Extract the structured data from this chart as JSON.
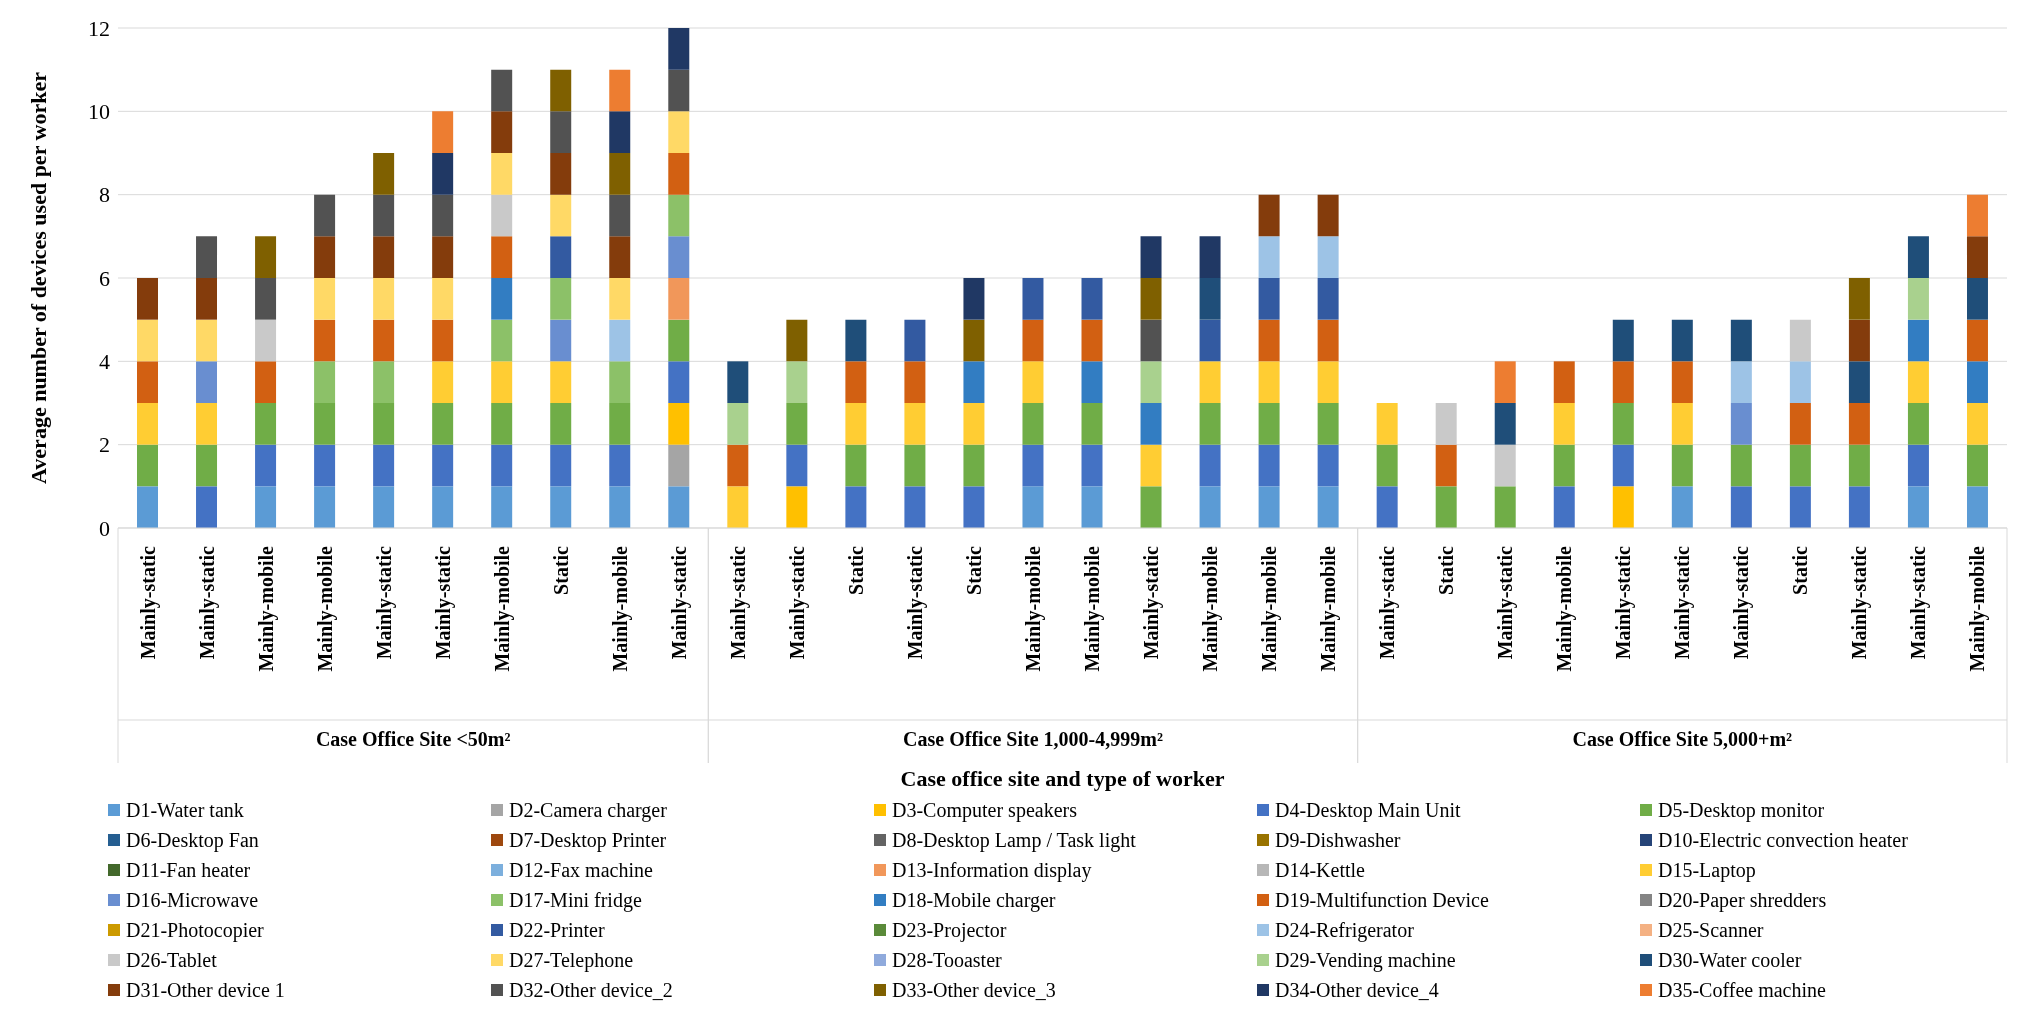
{
  "chart_data": {
    "type": "bar",
    "stacked": true,
    "xlabel": "Case office site and type of worker",
    "ylabel": "Average number of devices used per worker",
    "categories": [
      "Mainly-static",
      "Mainly-static",
      "Mainly-mobile",
      "Mainly-mobile",
      "Mainly-static",
      "Mainly-static",
      "Mainly-mobile",
      "Static",
      "Mainly-mobile",
      "Mainly-static",
      "Mainly-static",
      "Mainly-static",
      "Static",
      "Mainly-static",
      "Static",
      "Mainly-mobile",
      "Mainly-mobile",
      "Mainly-static",
      "Mainly-mobile",
      "Mainly-mobile",
      "Mainly-mobile",
      "Mainly-static",
      "Static",
      "Mainly-static",
      "Mainly-mobile",
      "Mainly-static",
      "Mainly-static",
      "Mainly-static",
      "Static",
      "Mainly-static",
      "Mainly-static",
      "Mainly-mobile"
    ],
    "annotations": [
      "Case Office Site <50m²",
      "Case Office Site 1,000-4,999m²",
      "Case Office Site 5,000+m²"
    ],
    "ylim": [
      0,
      12
    ],
    "yticks": [
      0,
      2,
      4,
      6,
      8,
      10,
      12
    ],
    "grid": "y",
    "legend": "bottom",
    "series": [
      {
        "name": "D1-Water tank",
        "color": "#5b9bd5",
        "values": [
          1,
          0,
          1,
          1,
          1,
          1,
          1,
          1,
          1,
          1,
          0,
          0,
          0,
          0,
          0,
          1,
          1,
          0,
          1,
          1,
          1,
          0,
          0,
          0,
          0,
          0,
          1,
          0,
          0,
          0,
          1,
          1
        ]
      },
      {
        "name": "D2-Camera charger",
        "color": "#a5a5a5",
        "values": [
          0,
          0,
          0,
          0,
          0,
          0,
          0,
          0,
          0,
          1,
          0,
          0,
          0,
          0,
          0,
          0,
          0,
          0,
          0,
          0,
          0,
          0,
          0,
          0,
          0,
          0,
          0,
          0,
          0,
          0,
          0,
          0
        ]
      },
      {
        "name": "D3-Computer speakers",
        "color": "#ffc000",
        "values": [
          0,
          0,
          0,
          0,
          0,
          0,
          0,
          0,
          0,
          1,
          0,
          1,
          0,
          0,
          0,
          0,
          0,
          0,
          0,
          0,
          0,
          0,
          0,
          0,
          0,
          1,
          0,
          0,
          0,
          0,
          0,
          0
        ]
      },
      {
        "name": "D4-Desktop Main Unit",
        "color": "#4472c4",
        "values": [
          0,
          1,
          1,
          1,
          1,
          1,
          1,
          1,
          1,
          1,
          0,
          1,
          1,
          1,
          1,
          1,
          1,
          0,
          1,
          1,
          1,
          1,
          0,
          0,
          1,
          1,
          0,
          1,
          1,
          1,
          1,
          0
        ]
      },
      {
        "name": "D5-Desktop monitor",
        "color": "#70ad47",
        "values": [
          1,
          1,
          1,
          1,
          1,
          1,
          1,
          1,
          1,
          1,
          0,
          1,
          1,
          1,
          1,
          1,
          1,
          1,
          1,
          1,
          1,
          1,
          1,
          1,
          1,
          1,
          1,
          1,
          1,
          1,
          1,
          1
        ]
      },
      {
        "name": "D6-Desktop Fan",
        "color": "#255e91",
        "values": [
          0,
          0,
          0,
          0,
          0,
          0,
          0,
          0,
          0,
          0,
          0,
          0,
          0,
          0,
          0,
          0,
          0,
          0,
          0,
          0,
          0,
          0,
          0,
          0,
          0,
          0,
          0,
          0,
          0,
          0,
          0,
          0
        ]
      },
      {
        "name": "D7-Desktop Printer",
        "color": "#9e480e",
        "values": [
          0,
          0,
          0,
          0,
          0,
          0,
          0,
          0,
          0,
          0,
          0,
          0,
          0,
          0,
          0,
          0,
          0,
          0,
          0,
          0,
          0,
          0,
          0,
          0,
          0,
          0,
          0,
          0,
          0,
          0,
          0,
          0
        ]
      },
      {
        "name": "D8-Desktop Lamp / Task light",
        "color": "#636363",
        "values": [
          0,
          0,
          0,
          0,
          0,
          0,
          0,
          0,
          0,
          0,
          0,
          0,
          0,
          0,
          0,
          0,
          0,
          0,
          0,
          0,
          0,
          0,
          0,
          0,
          0,
          0,
          0,
          0,
          0,
          0,
          0,
          0
        ]
      },
      {
        "name": "D9-Dishwasher",
        "color": "#997300",
        "values": [
          0,
          0,
          0,
          0,
          0,
          0,
          0,
          0,
          0,
          0,
          0,
          0,
          0,
          0,
          0,
          0,
          0,
          0,
          0,
          0,
          0,
          0,
          0,
          0,
          0,
          0,
          0,
          0,
          0,
          0,
          0,
          0
        ]
      },
      {
        "name": "D10-Electric convection heater",
        "color": "#264478",
        "values": [
          0,
          0,
          0,
          0,
          0,
          0,
          0,
          0,
          0,
          0,
          0,
          0,
          0,
          0,
          0,
          0,
          0,
          0,
          0,
          0,
          0,
          0,
          0,
          0,
          0,
          0,
          0,
          0,
          0,
          0,
          0,
          0
        ]
      },
      {
        "name": "D11-Fan heater",
        "color": "#43682b",
        "values": [
          0,
          0,
          0,
          0,
          0,
          0,
          0,
          0,
          0,
          0,
          0,
          0,
          0,
          0,
          0,
          0,
          0,
          0,
          0,
          0,
          0,
          0,
          0,
          0,
          0,
          0,
          0,
          0,
          0,
          0,
          0,
          0
        ]
      },
      {
        "name": "D12-Fax machine",
        "color": "#7cafdd",
        "values": [
          0,
          0,
          0,
          0,
          0,
          0,
          0,
          0,
          0,
          0,
          0,
          0,
          0,
          0,
          0,
          0,
          0,
          0,
          0,
          0,
          0,
          0,
          0,
          0,
          0,
          0,
          0,
          0,
          0,
          0,
          0,
          0
        ]
      },
      {
        "name": "D13-Information display",
        "color": "#f1975a",
        "values": [
          0,
          0,
          0,
          0,
          0,
          0,
          0,
          0,
          0,
          1,
          0,
          0,
          0,
          0,
          0,
          0,
          0,
          0,
          0,
          0,
          0,
          0,
          0,
          0,
          0,
          0,
          0,
          0,
          0,
          0,
          0,
          0
        ]
      },
      {
        "name": "D14-Kettle",
        "color": "#b7b7b7",
        "values": [
          0,
          0,
          0,
          0,
          0,
          0,
          0,
          0,
          0,
          0,
          0,
          0,
          0,
          0,
          0,
          0,
          0,
          0,
          0,
          0,
          0,
          0,
          0,
          0,
          0,
          0,
          0,
          0,
          0,
          0,
          0,
          0
        ]
      },
      {
        "name": "D15-Laptop",
        "color": "#ffcd33",
        "values": [
          1,
          1,
          0,
          0,
          0,
          1,
          1,
          1,
          0,
          0,
          1,
          0,
          1,
          1,
          1,
          1,
          0,
          1,
          1,
          1,
          1,
          1,
          0,
          0,
          1,
          0,
          1,
          0,
          0,
          0,
          1,
          1
        ]
      },
      {
        "name": "D16-Microwave",
        "color": "#698ed0",
        "values": [
          0,
          1,
          0,
          0,
          0,
          0,
          0,
          1,
          0,
          1,
          0,
          0,
          0,
          0,
          0,
          0,
          0,
          0,
          0,
          0,
          0,
          0,
          0,
          0,
          0,
          0,
          0,
          1,
          0,
          0,
          0,
          0
        ]
      },
      {
        "name": "D17-Mini fridge",
        "color": "#8cc168",
        "values": [
          0,
          0,
          0,
          1,
          1,
          0,
          1,
          1,
          1,
          1,
          0,
          0,
          0,
          0,
          0,
          0,
          0,
          0,
          0,
          0,
          0,
          0,
          0,
          0,
          0,
          0,
          0,
          0,
          0,
          0,
          0,
          0
        ]
      },
      {
        "name": "D18-Mobile charger",
        "color": "#327dc2",
        "values": [
          0,
          0,
          0,
          0,
          0,
          0,
          1,
          0,
          0,
          0,
          0,
          0,
          0,
          0,
          1,
          0,
          1,
          1,
          0,
          0,
          0,
          0,
          0,
          0,
          0,
          0,
          0,
          0,
          0,
          0,
          1,
          1
        ]
      },
      {
        "name": "D19-Multifunction Device",
        "color": "#d26012",
        "values": [
          1,
          0,
          1,
          1,
          1,
          1,
          1,
          0,
          0,
          1,
          1,
          0,
          1,
          1,
          0,
          1,
          1,
          0,
          0,
          1,
          1,
          0,
          1,
          0,
          1,
          1,
          1,
          0,
          1,
          1,
          0,
          1
        ]
      },
      {
        "name": "D20-Paper shredders",
        "color": "#848484",
        "values": [
          0,
          0,
          0,
          0,
          0,
          0,
          0,
          0,
          0,
          0,
          0,
          0,
          0,
          0,
          0,
          0,
          0,
          0,
          0,
          0,
          0,
          0,
          0,
          0,
          0,
          0,
          0,
          0,
          0,
          0,
          0,
          0
        ]
      },
      {
        "name": "D21-Photocopier",
        "color": "#cc9a00",
        "values": [
          0,
          0,
          0,
          0,
          0,
          0,
          0,
          0,
          0,
          0,
          0,
          0,
          0,
          0,
          0,
          0,
          0,
          0,
          0,
          0,
          0,
          0,
          0,
          0,
          0,
          0,
          0,
          0,
          0,
          0,
          0,
          0
        ]
      },
      {
        "name": "D22-Printer",
        "color": "#335aa1",
        "values": [
          0,
          0,
          0,
          0,
          0,
          0,
          0,
          1,
          0,
          0,
          0,
          0,
          0,
          1,
          0,
          1,
          1,
          0,
          1,
          1,
          1,
          0,
          0,
          0,
          0,
          0,
          0,
          0,
          0,
          0,
          0,
          0
        ]
      },
      {
        "name": "D23-Projector",
        "color": "#5a8a39",
        "values": [
          0,
          0,
          0,
          0,
          0,
          0,
          0,
          0,
          0,
          0,
          0,
          0,
          0,
          0,
          0,
          0,
          0,
          0,
          0,
          0,
          0,
          0,
          0,
          0,
          0,
          0,
          0,
          0,
          0,
          0,
          0,
          0
        ]
      },
      {
        "name": "D24-Refrigerator",
        "color": "#9dc3e6",
        "values": [
          0,
          0,
          0,
          0,
          0,
          0,
          0,
          0,
          1,
          0,
          0,
          0,
          0,
          0,
          0,
          0,
          0,
          0,
          0,
          1,
          1,
          0,
          0,
          0,
          0,
          0,
          0,
          1,
          1,
          0,
          0,
          0
        ]
      },
      {
        "name": "D25-Scanner",
        "color": "#f4b183",
        "values": [
          0,
          0,
          0,
          0,
          0,
          0,
          0,
          0,
          0,
          0,
          0,
          0,
          0,
          0,
          0,
          0,
          0,
          0,
          0,
          0,
          0,
          0,
          0,
          0,
          0,
          0,
          0,
          0,
          0,
          0,
          0,
          0
        ]
      },
      {
        "name": "D26-Tablet",
        "color": "#c9c9c9",
        "values": [
          0,
          0,
          1,
          0,
          0,
          0,
          1,
          0,
          0,
          0,
          0,
          0,
          0,
          0,
          0,
          0,
          0,
          0,
          0,
          0,
          0,
          0,
          1,
          1,
          0,
          0,
          0,
          0,
          1,
          0,
          0,
          0
        ]
      },
      {
        "name": "D27-Telephone",
        "color": "#ffd966",
        "values": [
          1,
          1,
          0,
          1,
          1,
          1,
          1,
          1,
          1,
          1,
          0,
          0,
          0,
          0,
          0,
          0,
          0,
          0,
          0,
          0,
          0,
          0,
          0,
          0,
          0,
          0,
          0,
          0,
          0,
          0,
          0,
          0
        ]
      },
      {
        "name": "D28-Tooaster",
        "color": "#8faadc",
        "values": [
          0,
          0,
          0,
          0,
          0,
          0,
          0,
          0,
          0,
          0,
          0,
          0,
          0,
          0,
          0,
          0,
          0,
          0,
          0,
          0,
          0,
          0,
          0,
          0,
          0,
          0,
          0,
          0,
          0,
          0,
          0,
          0
        ]
      },
      {
        "name": "D29-Vending machine",
        "color": "#a9d18e",
        "values": [
          0,
          0,
          0,
          0,
          0,
          0,
          0,
          0,
          0,
          0,
          1,
          1,
          0,
          0,
          0,
          0,
          0,
          1,
          0,
          0,
          0,
          0,
          0,
          0,
          0,
          0,
          0,
          0,
          0,
          0,
          1,
          0
        ]
      },
      {
        "name": "D30-Water cooler",
        "color": "#1f4e79",
        "values": [
          0,
          0,
          0,
          0,
          0,
          0,
          0,
          0,
          0,
          0,
          1,
          0,
          1,
          0,
          0,
          0,
          0,
          0,
          1,
          0,
          0,
          0,
          0,
          1,
          0,
          1,
          1,
          1,
          0,
          1,
          1,
          1
        ]
      },
      {
        "name": "D31-Other device 1",
        "color": "#843c0c",
        "values": [
          1,
          1,
          0,
          1,
          1,
          1,
          1,
          1,
          1,
          0,
          0,
          0,
          0,
          0,
          0,
          0,
          0,
          0,
          0,
          1,
          1,
          0,
          0,
          0,
          0,
          0,
          0,
          0,
          0,
          1,
          0,
          1
        ]
      },
      {
        "name": "D32-Other device_2",
        "color": "#525252",
        "values": [
          0,
          1,
          1,
          1,
          1,
          1,
          1,
          1,
          1,
          1,
          0,
          0,
          0,
          0,
          0,
          0,
          0,
          1,
          0,
          0,
          0,
          0,
          0,
          0,
          0,
          0,
          0,
          0,
          0,
          0,
          0,
          0
        ]
      },
      {
        "name": "D33-Other device_3",
        "color": "#7f6000",
        "values": [
          0,
          0,
          1,
          0,
          1,
          0,
          0,
          1,
          1,
          0,
          0,
          1,
          0,
          0,
          1,
          0,
          0,
          1,
          0,
          0,
          0,
          0,
          0,
          0,
          0,
          0,
          0,
          0,
          0,
          1,
          0,
          0
        ]
      },
      {
        "name": "D34-Other device_4",
        "color": "#203864",
        "values": [
          0,
          0,
          0,
          0,
          0,
          1,
          0,
          0,
          1,
          1,
          0,
          0,
          0,
          0,
          1,
          0,
          0,
          1,
          1,
          0,
          0,
          0,
          0,
          0,
          0,
          0,
          0,
          0,
          0,
          0,
          0,
          0
        ]
      },
      {
        "name": "D35-Coffee machine",
        "color": "#ed7d31",
        "values": [
          0,
          0,
          0,
          0,
          0,
          1,
          0,
          0,
          1,
          0,
          0,
          0,
          0,
          0,
          0,
          0,
          0,
          0,
          0,
          0,
          0,
          0,
          0,
          1,
          0,
          0,
          0,
          0,
          0,
          0,
          0,
          1
        ]
      }
    ]
  }
}
